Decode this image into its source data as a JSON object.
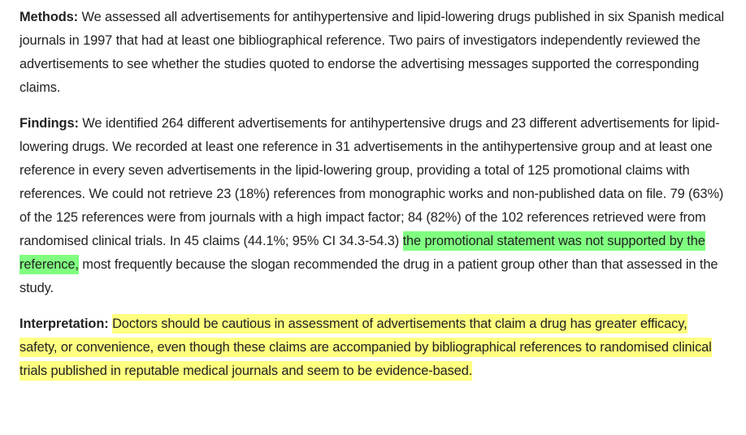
{
  "highlight_colors": {
    "green": "#80ff80",
    "yellow": "#ffff80"
  },
  "methods": {
    "label": "Methods:",
    "text": " We assessed all advertisements for antihypertensive and lipid-lowering drugs published in six Spanish medical journals in 1997 that had at least one bibliographical reference. Two pairs of investigators independently reviewed the advertisements to see whether the studies quoted to endorse the advertising messages supported the corresponding claims."
  },
  "findings": {
    "label": "Findings:",
    "text_before": " We identified 264 different advertisements for antihypertensive drugs and 23 different advertisements for lipid-lowering drugs. We recorded at least one reference in 31 advertisements in the antihypertensive group and at least one reference in every seven advertisements in the lipid-lowering group, providing a total of 125 promotional claims with references. We could not retrieve 23 (18%) references from monographic works and non-published data on file. 79 (63%) of the 125 references were from journals with a high impact factor; 84 (82%) of the 102 references retrieved were from randomised clinical trials. In 45 claims (44.1%; 95% CI 34.3-54.3) ",
    "highlighted": "the promotional statement was not supported by the reference,",
    "text_after": " most frequently because the slogan recommended the drug in a patient group other than that assessed in the study."
  },
  "interpretation": {
    "label": "Interpretation:",
    "highlighted": "Doctors should be cautious in assessment of advertisements that claim a drug has greater efficacy, safety, or convenience, even though these claims are accompanied by bibliographical references to randomised clinical trials published in reputable medical journals and seem to be evidence-based."
  }
}
